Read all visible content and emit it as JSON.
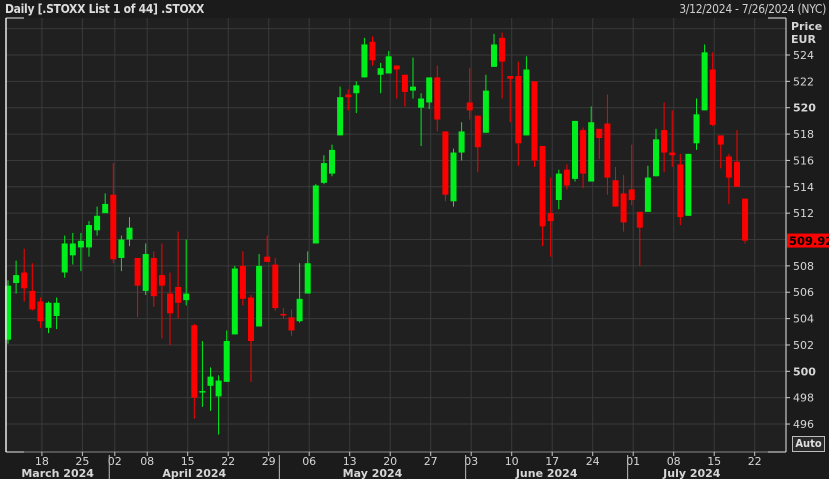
{
  "header": {
    "title": "Daily [.STOXX List 1 of 44] .STOXX",
    "date_range": "3/12/2024 - 7/26/2024 (NYC)"
  },
  "controls": {
    "auto_label": "Auto"
  },
  "colors": {
    "up": "#00ee1c",
    "down": "#ff0000",
    "background": "#1f201f",
    "grid": "#3a3a3a",
    "last_price_bg": "#ff0000"
  },
  "chart_data": {
    "type": "candlestick",
    "yaxis_title": "Price",
    "yaxis_unit": "EUR",
    "ylim": [
      495,
      526.5
    ],
    "y_ticks": [
      496,
      498,
      500,
      502,
      504,
      506,
      508,
      512,
      514,
      516,
      518,
      520,
      522,
      524
    ],
    "y_ticks_bold": [
      500,
      520
    ],
    "last_price": "509.92",
    "grid": true,
    "x_ticks": [
      {
        "label": "18",
        "date": "2024-03-18"
      },
      {
        "label": "25",
        "date": "2024-03-25"
      },
      {
        "label": "02",
        "date": "2024-04-02"
      },
      {
        "label": "08",
        "date": "2024-04-08"
      },
      {
        "label": "15",
        "date": "2024-04-15"
      },
      {
        "label": "22",
        "date": "2024-04-22"
      },
      {
        "label": "29",
        "date": "2024-04-29"
      },
      {
        "label": "06",
        "date": "2024-05-06"
      },
      {
        "label": "13",
        "date": "2024-05-13"
      },
      {
        "label": "20",
        "date": "2024-05-20"
      },
      {
        "label": "27",
        "date": "2024-05-27"
      },
      {
        "label": "03",
        "date": "2024-06-03"
      },
      {
        "label": "10",
        "date": "2024-06-10"
      },
      {
        "label": "17",
        "date": "2024-06-17"
      },
      {
        "label": "24",
        "date": "2024-06-24"
      },
      {
        "label": "01",
        "date": "2024-07-01"
      },
      {
        "label": "08",
        "date": "2024-07-08"
      },
      {
        "label": "15",
        "date": "2024-07-15"
      },
      {
        "label": "22",
        "date": "2024-07-22"
      }
    ],
    "months": [
      "March 2024",
      "April 2024",
      "May 2024",
      "June 2024",
      "July 2024"
    ],
    "dates": [
      "2024-03-12",
      "2024-03-13",
      "2024-03-14",
      "2024-03-15",
      "2024-03-18",
      "2024-03-19",
      "2024-03-20",
      "2024-03-21",
      "2024-03-22",
      "2024-03-25",
      "2024-03-26",
      "2024-03-27",
      "2024-03-28",
      "2024-04-02",
      "2024-04-03",
      "2024-04-04",
      "2024-04-05",
      "2024-04-08",
      "2024-04-09",
      "2024-04-10",
      "2024-04-11",
      "2024-04-12",
      "2024-04-15",
      "2024-04-16",
      "2024-04-17",
      "2024-04-18",
      "2024-04-19",
      "2024-04-22",
      "2024-04-23",
      "2024-04-24",
      "2024-04-25",
      "2024-04-26",
      "2024-04-29",
      "2024-04-30",
      "2024-05-01",
      "2024-05-02",
      "2024-05-03",
      "2024-05-06",
      "2024-05-07",
      "2024-05-08",
      "2024-05-09",
      "2024-05-10",
      "2024-05-13",
      "2024-05-14",
      "2024-05-15",
      "2024-05-16",
      "2024-05-17",
      "2024-05-20",
      "2024-05-21",
      "2024-05-22",
      "2024-05-23",
      "2024-05-24",
      "2024-05-27",
      "2024-05-28",
      "2024-05-29",
      "2024-05-30",
      "2024-05-31",
      "2024-06-03",
      "2024-06-04",
      "2024-06-05",
      "2024-06-06",
      "2024-06-07",
      "2024-06-10",
      "2024-06-11",
      "2024-06-12",
      "2024-06-13",
      "2024-06-14",
      "2024-06-17",
      "2024-06-18",
      "2024-06-19",
      "2024-06-20",
      "2024-06-21",
      "2024-06-24",
      "2024-06-25",
      "2024-06-26",
      "2024-06-27",
      "2024-06-28",
      "2024-07-01",
      "2024-07-02",
      "2024-07-03",
      "2024-07-04",
      "2024-07-05",
      "2024-07-08",
      "2024-07-09",
      "2024-07-10",
      "2024-07-11",
      "2024-07-12",
      "2024-07-15",
      "2024-07-16",
      "2024-07-17",
      "2024-07-18",
      "2024-07-19"
    ],
    "ohlc": [
      [
        502.4,
        506.9,
        502.1,
        506.5
      ],
      [
        506.7,
        508.4,
        505.9,
        507.3
      ],
      [
        507.5,
        509.3,
        505.3,
        506.3
      ],
      [
        506.1,
        508.2,
        504.6,
        504.7
      ],
      [
        505.3,
        505.6,
        503.3,
        503.8
      ],
      [
        503.3,
        505.3,
        502.9,
        505.2
      ],
      [
        504.2,
        505.6,
        503.2,
        505.2
      ],
      [
        507.5,
        510.3,
        507.1,
        509.7
      ],
      [
        508.8,
        510.5,
        508.1,
        509.7
      ],
      [
        509.4,
        510.5,
        507.6,
        509.9
      ],
      [
        509.4,
        511.4,
        508.7,
        511.1
      ],
      [
        510.7,
        512.5,
        510.3,
        511.8
      ],
      [
        512.0,
        513.5,
        512.0,
        512.7
      ],
      [
        513.4,
        515.8,
        508.2,
        508.5
      ],
      [
        508.6,
        510.3,
        507.6,
        510.0
      ],
      [
        510.0,
        511.7,
        509.5,
        510.9
      ],
      [
        508.6,
        508.6,
        504.1,
        506.5
      ],
      [
        506.1,
        509.7,
        505.8,
        508.9
      ],
      [
        508.6,
        509.1,
        504.9,
        505.7
      ],
      [
        507.3,
        509.7,
        502.5,
        506.5
      ],
      [
        505.9,
        507.5,
        502.0,
        504.4
      ],
      [
        506.4,
        510.6,
        504.0,
        505.2
      ],
      [
        505.4,
        510.0,
        505.0,
        505.9
      ],
      [
        503.5,
        503.6,
        496.4,
        498.0
      ],
      [
        498.4,
        502.3,
        497.3,
        498.5
      ],
      [
        498.9,
        500.3,
        497.0,
        499.6
      ],
      [
        498.1,
        499.7,
        495.2,
        499.3
      ],
      [
        499.2,
        503.1,
        499.2,
        502.3
      ],
      [
        502.8,
        508.0,
        502.8,
        507.8
      ],
      [
        508.0,
        509.1,
        505.0,
        505.5
      ],
      [
        505.6,
        505.8,
        499.2,
        502.3
      ],
      [
        503.4,
        508.9,
        503.4,
        508.0
      ],
      [
        508.7,
        510.3,
        508.3,
        508.3
      ],
      [
        508.1,
        508.6,
        504.6,
        504.8
      ],
      [
        504.35,
        504.8,
        504.0,
        504.3
      ],
      [
        504.1,
        504.7,
        502.7,
        503.1
      ],
      [
        503.8,
        508.2,
        503.7,
        505.5
      ],
      [
        505.9,
        509.1,
        505.9,
        508.2
      ],
      [
        509.7,
        514.2,
        509.7,
        514.1
      ],
      [
        514.3,
        516.4,
        514.2,
        515.8
      ],
      [
        515.0,
        517.2,
        514.8,
        516.8
      ],
      [
        517.9,
        521.6,
        517.9,
        520.8
      ],
      [
        521.0,
        521.4,
        519.8,
        520.8
      ],
      [
        521.1,
        522.0,
        519.6,
        521.7
      ],
      [
        522.3,
        525.3,
        522.3,
        524.8
      ],
      [
        525.0,
        525.4,
        523.2,
        523.6
      ],
      [
        522.5,
        523.4,
        521.1,
        523.0
      ],
      [
        522.6,
        524.3,
        522.6,
        523.9
      ],
      [
        523.2,
        523.2,
        520.7,
        522.9
      ],
      [
        522.5,
        522.5,
        520.1,
        521.2
      ],
      [
        521.3,
        523.8,
        520.7,
        521.6
      ],
      [
        520.0,
        521.1,
        517.1,
        520.7
      ],
      [
        520.4,
        522.3,
        519.9,
        522.3
      ],
      [
        522.3,
        523.2,
        518.2,
        519.1
      ],
      [
        518.2,
        518.2,
        512.9,
        513.4
      ],
      [
        512.9,
        516.9,
        512.5,
        516.6
      ],
      [
        516.6,
        518.9,
        516.0,
        518.2
      ],
      [
        520.4,
        523.0,
        519.1,
        519.8
      ],
      [
        519.4,
        519.4,
        515.1,
        517.0
      ],
      [
        518.1,
        522.5,
        518.1,
        521.3
      ],
      [
        523.1,
        525.6,
        523.1,
        524.8
      ],
      [
        525.3,
        525.7,
        520.7,
        523.5
      ],
      [
        522.4,
        522.4,
        518.9,
        522.2
      ],
      [
        522.4,
        523.5,
        515.6,
        517.3
      ],
      [
        517.9,
        523.9,
        517.9,
        522.9
      ],
      [
        522.0,
        522.0,
        515.5,
        516.0
      ],
      [
        517.1,
        517.1,
        509.5,
        511.0
      ],
      [
        512.0,
        514.7,
        508.7,
        511.4
      ],
      [
        513.0,
        515.3,
        512.3,
        515.0
      ],
      [
        515.3,
        515.7,
        513.8,
        514.1
      ],
      [
        514.6,
        519.0,
        514.4,
        519.0
      ],
      [
        518.3,
        518.5,
        513.9,
        515.0
      ],
      [
        514.4,
        520.1,
        514.4,
        518.9
      ],
      [
        518.4,
        518.4,
        516.1,
        517.7
      ],
      [
        518.8,
        521.0,
        513.4,
        514.7
      ],
      [
        514.5,
        515.5,
        512.5,
        512.5
      ],
      [
        513.5,
        514.9,
        510.6,
        511.3
      ],
      [
        513.8,
        517.2,
        512.6,
        513.0
      ],
      [
        512.1,
        512.1,
        508.0,
        510.9
      ],
      [
        512.1,
        515.6,
        512.1,
        514.7
      ],
      [
        514.8,
        518.4,
        514.8,
        517.6
      ],
      [
        518.3,
        520.4,
        515.1,
        516.6
      ],
      [
        516.6,
        519.8,
        515.5,
        516.4
      ],
      [
        515.7,
        516.5,
        511.1,
        511.7
      ],
      [
        511.8,
        516.5,
        511.8,
        516.5
      ],
      [
        517.3,
        520.7,
        516.8,
        519.5
      ],
      [
        519.8,
        524.8,
        519.8,
        524.2
      ],
      [
        522.9,
        524.2,
        518.6,
        518.7
      ],
      [
        517.9,
        517.9,
        515.4,
        517.2
      ],
      [
        516.3,
        516.5,
        512.7,
        514.7
      ],
      [
        515.9,
        518.3,
        514.0,
        514.0
      ],
      [
        513.1,
        513.1,
        509.7,
        509.92
      ]
    ]
  }
}
